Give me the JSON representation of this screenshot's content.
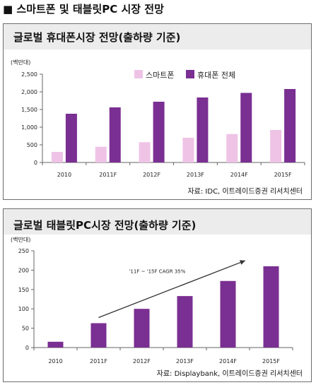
{
  "page_title": "■ 스마트폰 및 태블릿PC 시장 전망",
  "colors": {
    "smartphone": "#efc3e6",
    "total": "#7a2f92",
    "tablet": "#7a2f92",
    "axis": "#666666",
    "header_band": "#ececec"
  },
  "chart_data": [
    {
      "type": "bar",
      "title": "글로벌 휴대폰시장 전망(출하량 기준)",
      "ylabel": "(백만대)",
      "categories": [
        "2010",
        "2011F",
        "2012F",
        "2013F",
        "2014F",
        "2015F"
      ],
      "series": [
        {
          "name": "스마트폰",
          "values": [
            300,
            445,
            575,
            700,
            805,
            920
          ]
        },
        {
          "name": "휴대폰 전체",
          "values": [
            1380,
            1560,
            1720,
            1840,
            1970,
            2080
          ]
        }
      ],
      "ylim": [
        0,
        2500
      ],
      "yticks": [
        "0",
        "500",
        "1,000",
        "1,500",
        "2,000",
        "2,500"
      ],
      "legend_position": "top-right",
      "grid": false,
      "source": "자료: IDC, 이트레이드증권 리서치센터"
    },
    {
      "type": "bar",
      "title": "글로벌 태블릿PC시장 전망(출하량 기준)",
      "ylabel": "(백만대)",
      "categories": [
        "2010",
        "2011F",
        "2012F",
        "2013F",
        "2014F",
        "2015F"
      ],
      "values": [
        15,
        63,
        100,
        133,
        172,
        210
      ],
      "ylim": [
        0,
        250
      ],
      "yticks": [
        "0",
        "50",
        "100",
        "150",
        "200",
        "250"
      ],
      "annotation": "'11F ~ '15F CAGR 35%",
      "grid": false,
      "source": "자료: Displaybank, 이트레이드증권 리서치센터"
    }
  ]
}
